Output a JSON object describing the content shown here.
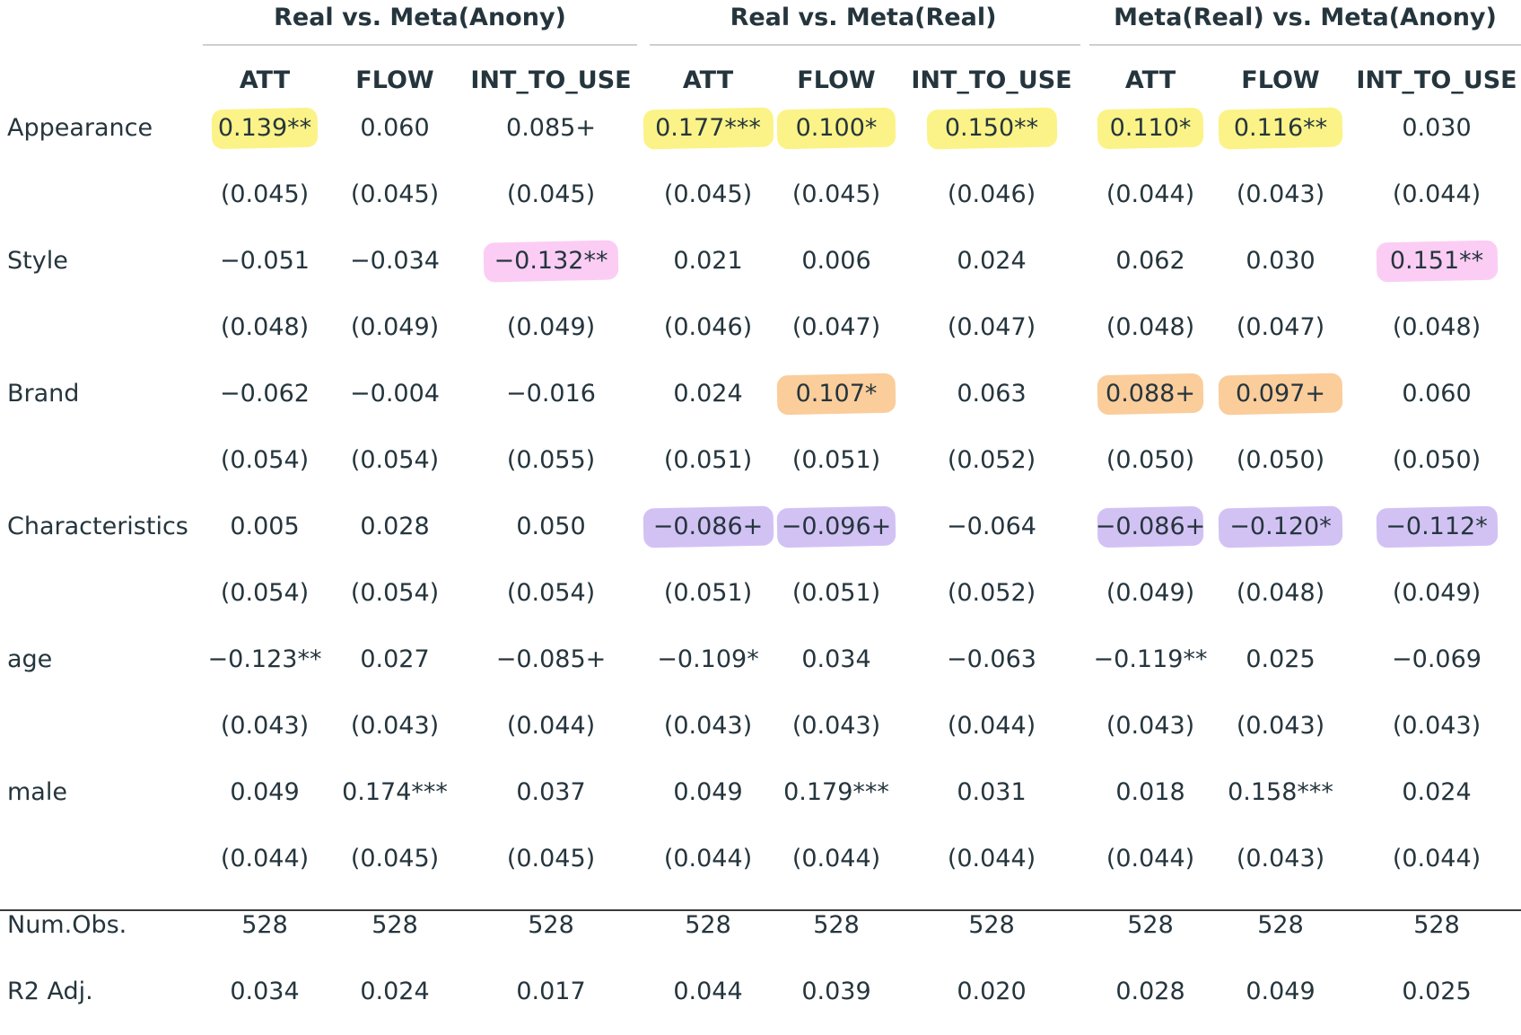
{
  "groups": [
    {
      "label": "Real vs. Meta(Anony)"
    },
    {
      "label": "Real vs. Meta(Real)"
    },
    {
      "label": "Meta(Real) vs. Meta(Anony)"
    }
  ],
  "columns": [
    "ATT",
    "FLOW",
    "INT_TO_USE",
    "ATT",
    "FLOW",
    "INT_TO_USE",
    "ATT",
    "FLOW",
    "INT_TO_USE"
  ],
  "highlight_colors": {
    "yellow": "#fbf27a",
    "pink": "#fbc8f3",
    "orange": "#f9c890",
    "purple": "#cdbbf3"
  },
  "rows": [
    {
      "label": "Appearance",
      "cells": [
        {
          "v": "0.139**",
          "hl": "yellow"
        },
        {
          "v": "0.060"
        },
        {
          "v": "0.085+"
        },
        {
          "v": "0.177***",
          "hl": "yellow"
        },
        {
          "v": "0.100*",
          "hl": "yellow"
        },
        {
          "v": "0.150**",
          "hl": "yellow"
        },
        {
          "v": "0.110*",
          "hl": "yellow"
        },
        {
          "v": "0.116**",
          "hl": "yellow"
        },
        {
          "v": "0.030"
        }
      ]
    },
    {
      "label": "",
      "cells": [
        {
          "v": "(0.045)"
        },
        {
          "v": "(0.045)"
        },
        {
          "v": "(0.045)"
        },
        {
          "v": "(0.045)"
        },
        {
          "v": "(0.045)"
        },
        {
          "v": "(0.046)"
        },
        {
          "v": "(0.044)"
        },
        {
          "v": "(0.043)"
        },
        {
          "v": "(0.044)"
        }
      ]
    },
    {
      "label": "Style",
      "cells": [
        {
          "v": "−0.051"
        },
        {
          "v": "−0.034"
        },
        {
          "v": "−0.132**",
          "hl": "pink"
        },
        {
          "v": "0.021"
        },
        {
          "v": "0.006"
        },
        {
          "v": "0.024"
        },
        {
          "v": "0.062"
        },
        {
          "v": "0.030"
        },
        {
          "v": "0.151**",
          "hl": "pink"
        }
      ]
    },
    {
      "label": "",
      "cells": [
        {
          "v": "(0.048)"
        },
        {
          "v": "(0.049)"
        },
        {
          "v": "(0.049)"
        },
        {
          "v": "(0.046)"
        },
        {
          "v": "(0.047)"
        },
        {
          "v": "(0.047)"
        },
        {
          "v": "(0.048)"
        },
        {
          "v": "(0.047)"
        },
        {
          "v": "(0.048)"
        }
      ]
    },
    {
      "label": "Brand",
      "cells": [
        {
          "v": "−0.062"
        },
        {
          "v": "−0.004"
        },
        {
          "v": "−0.016"
        },
        {
          "v": "0.024"
        },
        {
          "v": "0.107*",
          "hl": "orange"
        },
        {
          "v": "0.063"
        },
        {
          "v": "0.088+",
          "hl": "orange"
        },
        {
          "v": "0.097+",
          "hl": "orange"
        },
        {
          "v": "0.060"
        }
      ]
    },
    {
      "label": "",
      "cells": [
        {
          "v": "(0.054)"
        },
        {
          "v": "(0.054)"
        },
        {
          "v": "(0.055)"
        },
        {
          "v": "(0.051)"
        },
        {
          "v": "(0.051)"
        },
        {
          "v": "(0.052)"
        },
        {
          "v": "(0.050)"
        },
        {
          "v": "(0.050)"
        },
        {
          "v": "(0.050)"
        }
      ]
    },
    {
      "label": "Characteristics",
      "cells": [
        {
          "v": "0.005"
        },
        {
          "v": "0.028"
        },
        {
          "v": "0.050"
        },
        {
          "v": "−0.086+",
          "hl": "purple"
        },
        {
          "v": "−0.096+",
          "hl": "purple"
        },
        {
          "v": "−0.064"
        },
        {
          "v": "−0.086+",
          "hl": "purple"
        },
        {
          "v": "−0.120*",
          "hl": "purple"
        },
        {
          "v": "−0.112*",
          "hl": "purple"
        }
      ]
    },
    {
      "label": "",
      "cells": [
        {
          "v": "(0.054)"
        },
        {
          "v": "(0.054)"
        },
        {
          "v": "(0.054)"
        },
        {
          "v": "(0.051)"
        },
        {
          "v": "(0.051)"
        },
        {
          "v": "(0.052)"
        },
        {
          "v": "(0.049)"
        },
        {
          "v": "(0.048)"
        },
        {
          "v": "(0.049)"
        }
      ]
    },
    {
      "label": "age",
      "cells": [
        {
          "v": "−0.123**"
        },
        {
          "v": "0.027"
        },
        {
          "v": "−0.085+"
        },
        {
          "v": "−0.109*"
        },
        {
          "v": "0.034"
        },
        {
          "v": "−0.063"
        },
        {
          "v": "−0.119**"
        },
        {
          "v": "0.025"
        },
        {
          "v": "−0.069"
        }
      ]
    },
    {
      "label": "",
      "cells": [
        {
          "v": "(0.043)"
        },
        {
          "v": "(0.043)"
        },
        {
          "v": "(0.044)"
        },
        {
          "v": "(0.043)"
        },
        {
          "v": "(0.043)"
        },
        {
          "v": "(0.044)"
        },
        {
          "v": "(0.043)"
        },
        {
          "v": "(0.043)"
        },
        {
          "v": "(0.043)"
        }
      ]
    },
    {
      "label": "male",
      "cells": [
        {
          "v": "0.049"
        },
        {
          "v": "0.174***"
        },
        {
          "v": "0.037"
        },
        {
          "v": "0.049"
        },
        {
          "v": "0.179***"
        },
        {
          "v": "0.031"
        },
        {
          "v": "0.018"
        },
        {
          "v": "0.158***"
        },
        {
          "v": "0.024"
        }
      ]
    },
    {
      "label": "",
      "cells": [
        {
          "v": "(0.044)"
        },
        {
          "v": "(0.045)"
        },
        {
          "v": "(0.045)"
        },
        {
          "v": "(0.044)"
        },
        {
          "v": "(0.044)"
        },
        {
          "v": "(0.044)"
        },
        {
          "v": "(0.044)"
        },
        {
          "v": "(0.043)"
        },
        {
          "v": "(0.044)"
        }
      ]
    },
    {
      "label": "Num.Obs.",
      "cells": [
        {
          "v": "528"
        },
        {
          "v": "528"
        },
        {
          "v": "528"
        },
        {
          "v": "528"
        },
        {
          "v": "528"
        },
        {
          "v": "528"
        },
        {
          "v": "528"
        },
        {
          "v": "528"
        },
        {
          "v": "528"
        }
      ]
    },
    {
      "label": "R2 Adj.",
      "cells": [
        {
          "v": "0.034"
        },
        {
          "v": "0.024"
        },
        {
          "v": "0.017"
        },
        {
          "v": "0.044"
        },
        {
          "v": "0.039"
        },
        {
          "v": "0.020"
        },
        {
          "v": "0.028"
        },
        {
          "v": "0.049"
        },
        {
          "v": "0.025"
        }
      ]
    }
  ]
}
